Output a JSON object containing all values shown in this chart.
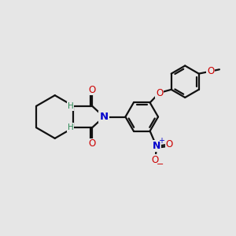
{
  "bg_color": "#e6e6e6",
  "bond_color": "#111111",
  "bond_width": 1.6,
  "N_color": "#0000cc",
  "O_color": "#cc0000",
  "H_color": "#2e8b57",
  "figsize": [
    3.0,
    3.0
  ],
  "dpi": 100,
  "xlim": [
    0,
    10
  ],
  "ylim": [
    0,
    10
  ]
}
